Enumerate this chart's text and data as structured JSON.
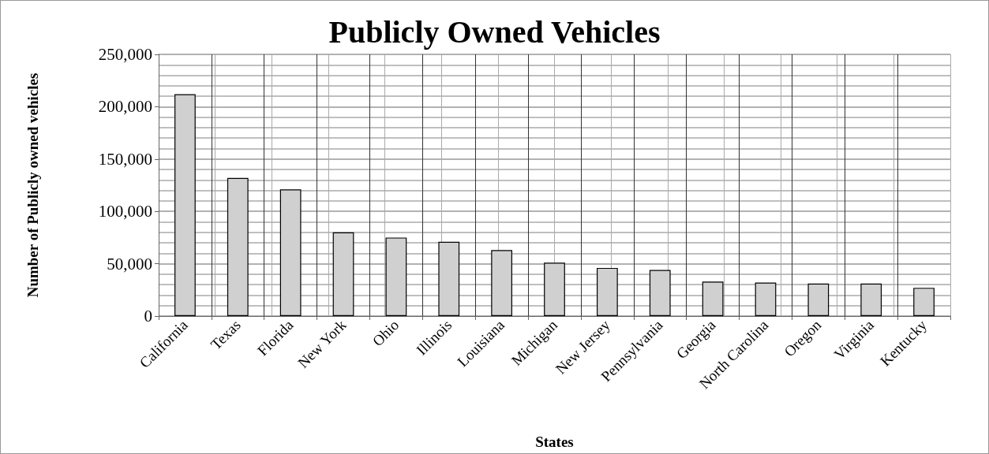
{
  "chart_data": {
    "type": "bar",
    "title": "Publicly Owned Vehicles",
    "xlabel": "States",
    "ylabel": "Number of Publicly owned vehicles",
    "categories": [
      "California",
      "Texas",
      "Florida",
      "New York",
      "Ohio",
      "Illinois",
      "Louisiana",
      "Michigan",
      "New Jersey",
      "Pennsylvania",
      "Georgia",
      "North Carolina",
      "Oregon",
      "Virginia",
      "Kentucky"
    ],
    "values": [
      212000,
      132000,
      121000,
      80000,
      75000,
      71000,
      63000,
      51000,
      46000,
      44000,
      33000,
      32000,
      31000,
      31000,
      27000
    ],
    "color": "#d0d0d0",
    "ylim": [
      0,
      250000
    ],
    "yticks": [
      0,
      {
        "value": 50000,
        "label": "50,000"
      },
      {
        "value": 100000,
        "label": "100,000"
      },
      {
        "value": 150000,
        "label": "150,000"
      },
      {
        "value": 200000,
        "label": "200,000"
      },
      {
        "value": 250000,
        "label": "250,000"
      }
    ],
    "grid": true
  }
}
